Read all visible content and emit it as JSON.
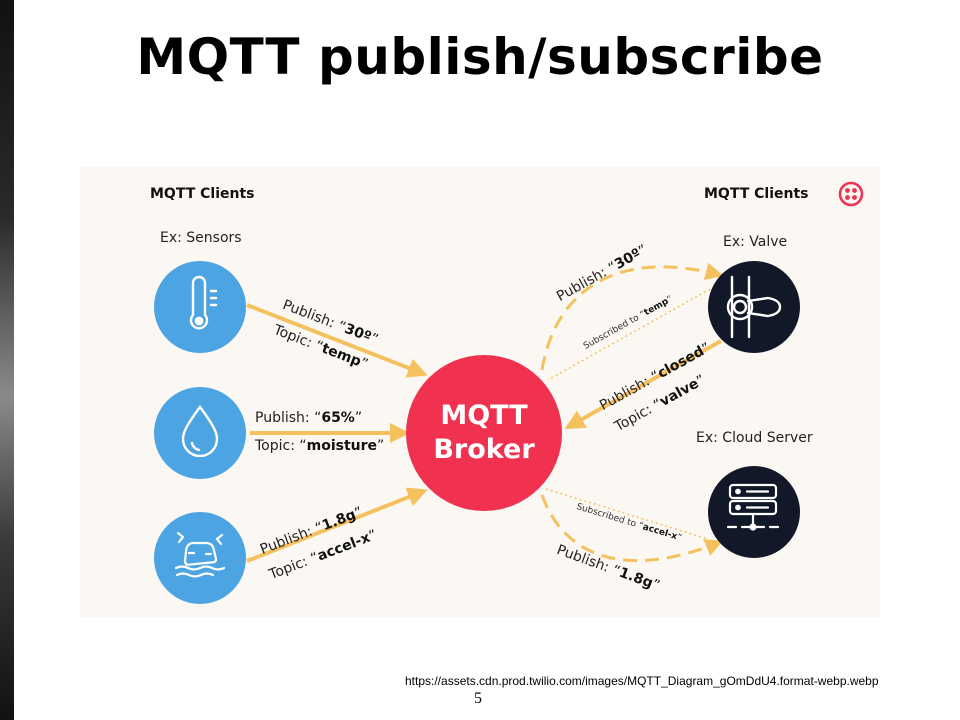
{
  "slide": {
    "title": "MQTT publish/subscribe",
    "source_url": "https://assets.cdn.prod.twilio.com/images/MQTT_Diagram_gOmDdU4.format-webp.webp",
    "page_number": "5"
  },
  "diagram": {
    "left_header": "MQTT Clients",
    "right_header": "MQTT Clients",
    "sensors_label": "Ex: Sensors",
    "valve_label": "Ex: Valve",
    "server_label": "Ex: Cloud Server",
    "broker_line1": "MQTT",
    "broker_line2": "Broker",
    "flows": {
      "temp_publish_prefix": "Publish: “",
      "temp_publish_value": "30º",
      "temp_publish_suffix": "”",
      "temp_topic_prefix": "Topic: “",
      "temp_topic_value": "temp",
      "temp_topic_suffix": "”",
      "moisture_publish_prefix": "Publish: “",
      "moisture_publish_value": "65%",
      "moisture_publish_suffix": "”",
      "moisture_topic_prefix": "Topic: “",
      "moisture_topic_value": "moisture",
      "moisture_topic_suffix": "”",
      "accel_publish_prefix": "Publish: “",
      "accel_publish_value": "1.8g",
      "accel_publish_suffix": "”",
      "accel_topic_prefix": "Topic: “",
      "accel_topic_value": "accel-x",
      "accel_topic_suffix": "”",
      "valve_publish_prefix": "Publish: “",
      "valve_publish_value": "closed",
      "valve_publish_suffix": "”",
      "valve_topic_prefix": "Topic: “",
      "valve_topic_value": "valve",
      "valve_topic_suffix": "”",
      "to_valve_publish_prefix": "Publish: “",
      "to_valve_publish_value": "30º",
      "to_valve_publish_suffix": "”",
      "valve_sub_prefix": "Subscribed to “",
      "valve_sub_value": "temp",
      "valve_sub_suffix": "”",
      "to_server_publish_prefix": "Publish: “",
      "to_server_publish_value": "1.8g",
      "to_server_publish_suffix": "”",
      "server_sub_prefix": "Subscribed to “",
      "server_sub_value": "accel-x",
      "server_sub_suffix": "”"
    },
    "icons": {
      "sensor1": "thermometer-icon",
      "sensor2": "water-drop-icon",
      "sensor3": "car-skid-icon",
      "valve": "valve-icon",
      "server": "server-icon",
      "brand": "twilio-logo-icon"
    },
    "colors": {
      "sensor_blue": "#4da4e2",
      "broker_red": "#f0314f",
      "dark_navy": "#111827",
      "arrow_gold": "#f5c15f",
      "panel_bg": "#fbf8f4"
    }
  }
}
